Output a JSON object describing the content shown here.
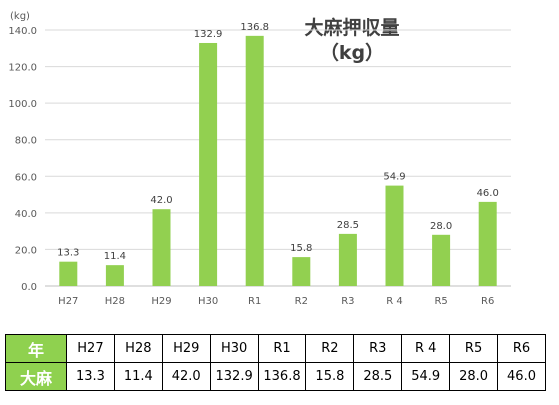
{
  "colors": {
    "bar": "#92d050",
    "header": "#8fd14f",
    "grid": "#d9d9d9"
  },
  "chart_data": {
    "type": "bar",
    "title": "大麻押収量",
    "title_unit": "（kg）",
    "ylabel": "(kg)",
    "categories": [
      "H27",
      "H28",
      "H29",
      "H30",
      "R1",
      "R2",
      "R3",
      "R 4",
      "R5",
      "R6"
    ],
    "values": [
      13.3,
      11.4,
      42.0,
      132.9,
      136.8,
      15.8,
      28.5,
      54.9,
      28.0,
      46.0
    ],
    "value_labels": [
      "13.3",
      "11.4",
      "42.0",
      "132.9",
      "136.8",
      "15.8",
      "28.5",
      "54.9",
      "28.0",
      "46.0"
    ],
    "ylim": [
      0,
      140
    ],
    "yticks": [
      "0.0",
      "20.0",
      "40.0",
      "60.0",
      "80.0",
      "100.0",
      "120.0",
      "140.0"
    ],
    "grid": true,
    "legend": "none"
  },
  "table": {
    "header_label": "年",
    "row_label": "大麻",
    "years": [
      "H27",
      "H28",
      "H29",
      "H30",
      "R1",
      "R2",
      "R3",
      "R 4",
      "R5",
      "R6"
    ],
    "values": [
      "13.3",
      "11.4",
      "42.0",
      "132.9",
      "136.8",
      "15.8",
      "28.5",
      "54.9",
      "28.0",
      "46.0"
    ]
  }
}
